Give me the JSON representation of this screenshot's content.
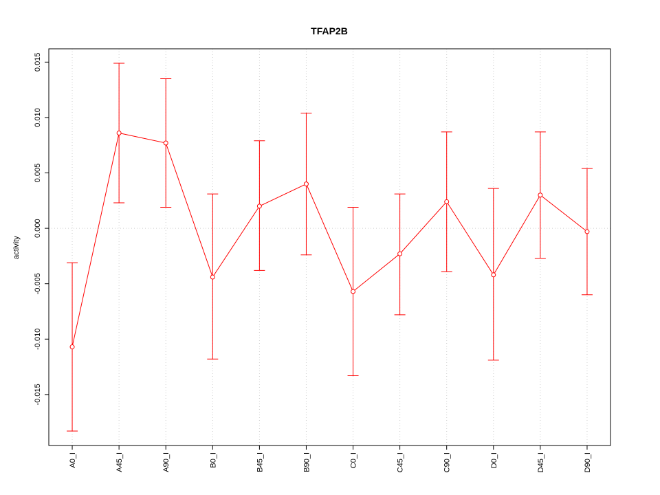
{
  "chart_data": {
    "type": "line",
    "title": "TFAP2B",
    "xlabel": "",
    "ylabel": "activity",
    "categories": [
      "A0_I",
      "A45_I",
      "A90_I",
      "B0_I",
      "B45_I",
      "B90_I",
      "C0_I",
      "C45_I",
      "C90_I",
      "D0_I",
      "D45_I",
      "D90_I"
    ],
    "series": [
      {
        "values": [
          -0.0107,
          0.0086,
          0.0077,
          -0.0044,
          0.002,
          0.004,
          -0.0057,
          -0.0023,
          0.0024,
          -0.0042,
          0.003,
          -0.0003
        ],
        "lower": [
          -0.0183,
          0.0023,
          0.0019,
          -0.0118,
          -0.0038,
          -0.0024,
          -0.0133,
          -0.0078,
          -0.0039,
          -0.0119,
          -0.0027,
          -0.006
        ],
        "upper": [
          -0.0031,
          0.0149,
          0.0135,
          0.0031,
          0.0079,
          0.0104,
          0.0019,
          0.0031,
          0.0087,
          0.0036,
          0.0087,
          0.0054
        ]
      }
    ],
    "yticks": [
      -0.015,
      -0.01,
      -0.005,
      0.0,
      0.005,
      0.01,
      0.015
    ],
    "ytick_labels": [
      "-0.015",
      "-0.010",
      "-0.005",
      "0.000",
      "0.005",
      "0.010",
      "0.015"
    ],
    "ylim": [
      -0.0196,
      0.0162
    ],
    "grid": true,
    "colors": {
      "series": "#ff0000",
      "grid": "#cccccc",
      "axis": "#000000"
    }
  }
}
